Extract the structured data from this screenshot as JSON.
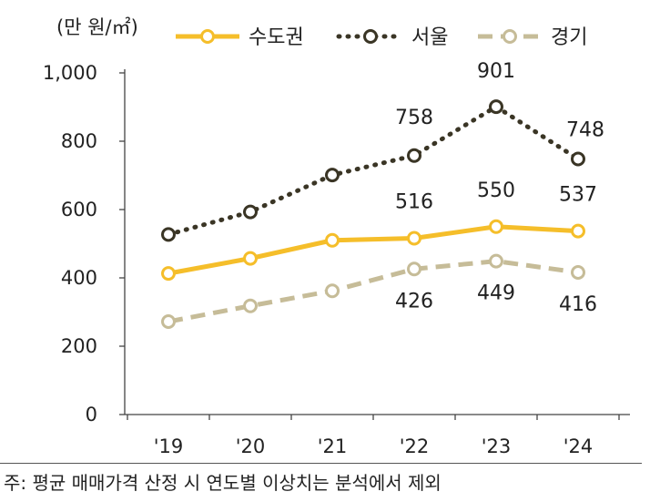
{
  "chart_data": {
    "type": "line",
    "unit_label": "(만 원/㎡)",
    "categories": [
      "'19",
      "'20",
      "'21",
      "'22",
      "'23",
      "'24"
    ],
    "ylim": [
      0,
      1000
    ],
    "yticks": [
      0,
      200,
      400,
      600,
      800,
      1000
    ],
    "ytick_labels": [
      "0",
      "200",
      "400",
      "600",
      "800",
      "1,000"
    ],
    "grid": false,
    "legend_position": "top",
    "series": [
      {
        "name": "수도권",
        "values": [
          413,
          457,
          510,
          516,
          550,
          537
        ],
        "color": "#F5BE2A",
        "style": "solid",
        "labels": [
          null,
          null,
          null,
          "516",
          "550",
          "537"
        ]
      },
      {
        "name": "서울",
        "values": [
          527,
          593,
          701,
          758,
          901,
          748
        ],
        "color": "#3A3525",
        "style": "dotted",
        "labels": [
          null,
          null,
          null,
          "758",
          "901",
          "748"
        ]
      },
      {
        "name": "경기",
        "values": [
          272,
          318,
          362,
          426,
          449,
          416
        ],
        "color": "#C6BC98",
        "style": "dashed",
        "labels": [
          null,
          null,
          null,
          "426",
          "449",
          "416"
        ]
      }
    ]
  },
  "footnote": "주: 평균 매매가격 산정 시 연도별 이상치는 분석에서 제외"
}
